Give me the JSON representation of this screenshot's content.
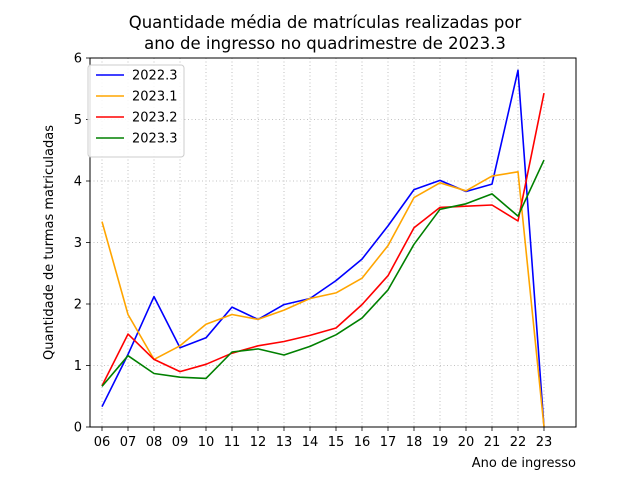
{
  "chart_data": {
    "type": "line",
    "title_lines": [
      "Quantidade média de matrículas realizadas por",
      "ano de ingresso no quadrimestre de 2023.3"
    ],
    "xlabel": "Ano de ingresso",
    "ylabel": "Quantidade de turmas matriculadas",
    "categories": [
      "06",
      "07",
      "08",
      "09",
      "10",
      "11",
      "12",
      "13",
      "14",
      "15",
      "16",
      "17",
      "18",
      "19",
      "20",
      "21",
      "22",
      "23"
    ],
    "yticks": [
      "0",
      "1",
      "2",
      "3",
      "4",
      "5",
      "6"
    ],
    "ylim": [
      0,
      6
    ],
    "grid": true,
    "legend_position": "top-left",
    "series": [
      {
        "name": "2022.3",
        "color": "#0000ff",
        "values": [
          0.33,
          1.18,
          2.12,
          1.29,
          1.45,
          1.95,
          1.75,
          1.99,
          2.09,
          2.38,
          2.73,
          3.27,
          3.86,
          4.01,
          3.83,
          3.95,
          5.8,
          0.0
        ]
      },
      {
        "name": "2023.1",
        "color": "#ffa500",
        "values": [
          3.34,
          1.83,
          1.1,
          1.32,
          1.67,
          1.83,
          1.75,
          1.9,
          2.09,
          2.18,
          2.42,
          2.95,
          3.73,
          3.97,
          3.84,
          4.08,
          4.15,
          0.0
        ]
      },
      {
        "name": "2023.2",
        "color": "#ff0000",
        "values": [
          0.67,
          1.51,
          1.1,
          0.9,
          1.02,
          1.2,
          1.32,
          1.39,
          1.49,
          1.61,
          1.99,
          2.46,
          3.24,
          3.57,
          3.59,
          3.61,
          3.35,
          5.43
        ]
      },
      {
        "name": "2023.3",
        "color": "#008000",
        "values": [
          0.66,
          1.16,
          0.87,
          0.81,
          0.79,
          1.22,
          1.27,
          1.17,
          1.31,
          1.5,
          1.77,
          2.23,
          2.97,
          3.54,
          3.63,
          3.79,
          3.43,
          4.34
        ]
      }
    ]
  }
}
